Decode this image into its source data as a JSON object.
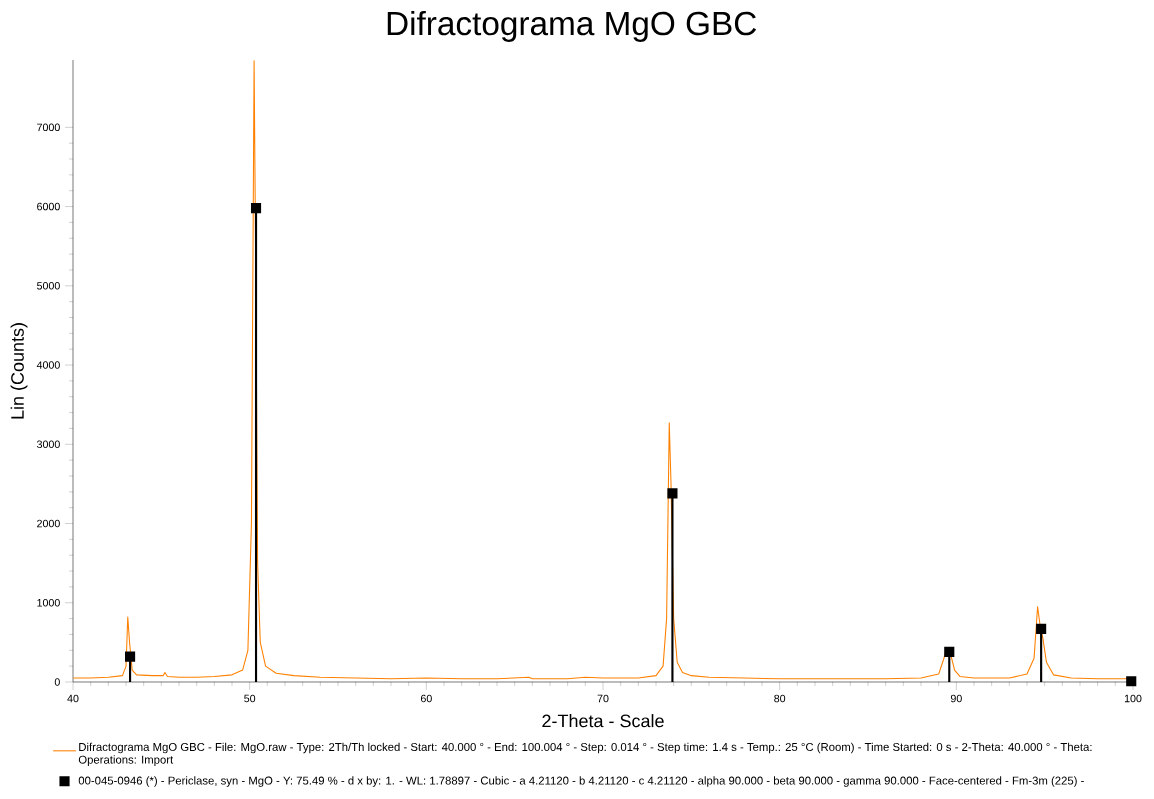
{
  "chart_data": {
    "type": "line",
    "title": "Difractograma MgO GBC",
    "xlabel": "2-Theta - Scale",
    "ylabel": "Lin (Counts)",
    "xlim": [
      40,
      100
    ],
    "ylim": [
      0,
      7850
    ],
    "xticks": [
      40,
      50,
      60,
      70,
      80,
      90,
      100
    ],
    "yticks": [
      0,
      1000,
      2000,
      3000,
      4000,
      5000,
      6000,
      7000
    ],
    "legend": "bottom",
    "series": [
      {
        "name": "Difractograma MgO GBC - File: MgO.raw - Type: 2Th/Th locked - Start: 40.000 ° - End: 100.004 ° - Step: 0.014 ° - Step time: 1.4 s - Temp.: 25 °C (Room) - Time Started: 0 s - 2-Theta: 40.000 ° - Theta: Operations: Import",
        "color": "#ff8000",
        "x": [
          40,
          41,
          42,
          42.8,
          43.0,
          43.1,
          43.2,
          43.35,
          43.6,
          44.5,
          45.1,
          45.2,
          45.35,
          46,
          47,
          48,
          49,
          49.6,
          49.9,
          50.1,
          50.25,
          50.35,
          50.45,
          50.6,
          50.9,
          51.5,
          52.5,
          54,
          56,
          58,
          60,
          62,
          64,
          65.8,
          66,
          68,
          69,
          70,
          72,
          73,
          73.4,
          73.6,
          73.75,
          73.85,
          74.0,
          74.2,
          74.5,
          75,
          76,
          78,
          80,
          82,
          84,
          86,
          88,
          89.0,
          89.3,
          89.45,
          89.55,
          89.7,
          89.9,
          90.2,
          91,
          93,
          94.0,
          94.4,
          94.6,
          94.75,
          94.9,
          95.1,
          95.5,
          96.5,
          98,
          100
        ],
        "values": [
          50,
          50,
          60,
          80,
          200,
          820,
          500,
          150,
          90,
          80,
          80,
          120,
          70,
          60,
          60,
          70,
          90,
          150,
          400,
          2000,
          7840,
          5000,
          1500,
          500,
          200,
          110,
          80,
          60,
          50,
          40,
          50,
          40,
          40,
          60,
          40,
          40,
          60,
          50,
          50,
          80,
          200,
          800,
          3270,
          2500,
          800,
          250,
          120,
          80,
          60,
          50,
          40,
          40,
          40,
          40,
          50,
          100,
          300,
          430,
          380,
          330,
          150,
          70,
          50,
          50,
          100,
          300,
          950,
          700,
          550,
          250,
          90,
          50,
          40,
          40
        ]
      },
      {
        "name": "00-045-0946 (*) - Periclase, syn - MgO - Y: 75.49 % - d x by: 1. - WL: 1.78897 - Cubic - a 4.21120 - b 4.21120 - c 4.21120 - alpha 90.000 - beta 90.000 - gamma 90.000 - Face-centered - Fm-3m (225) -",
        "color": "#000000",
        "type": "lollipop",
        "marker": "square",
        "x": [
          43.23,
          50.36,
          73.93,
          89.6,
          94.8,
          99.9
        ],
        "values": [
          320,
          5980,
          2380,
          380,
          670,
          10
        ]
      }
    ]
  }
}
